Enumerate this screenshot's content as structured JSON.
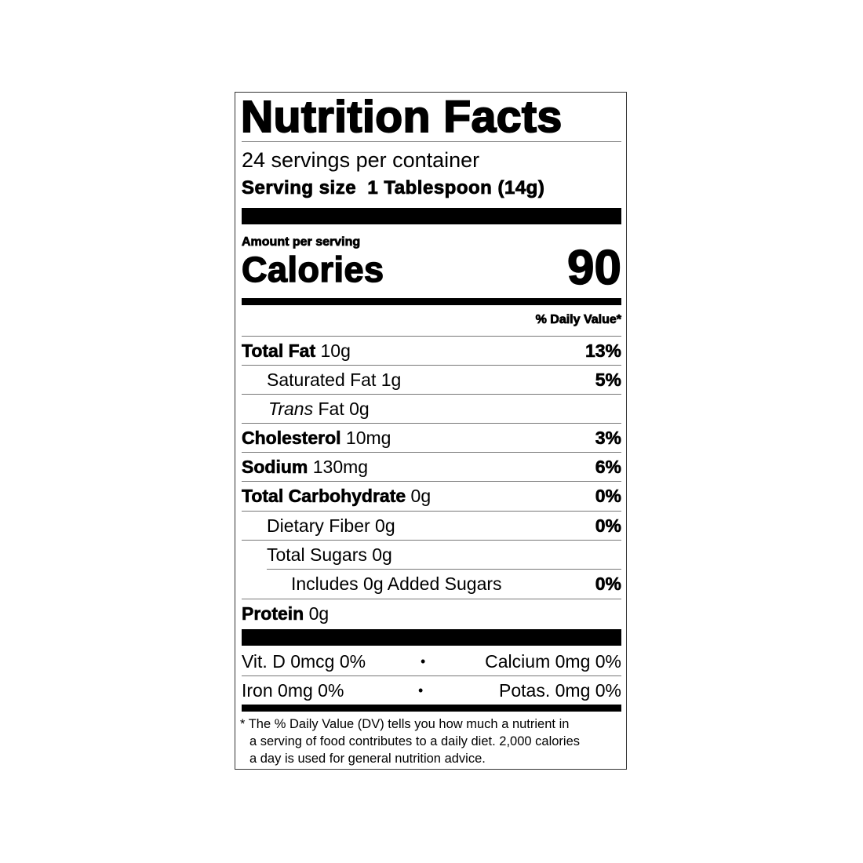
{
  "title": "Nutrition Facts",
  "servings_per_container": "24 servings per container",
  "serving_size_label": "Serving size",
  "serving_size_value": "1 Tablespoon (14g)",
  "amount_per_serving": "Amount per serving",
  "calories_label": "Calories",
  "calories_value": "90",
  "daily_value_header": "% Daily Value*",
  "nutrients": [
    {
      "name": "Total Fat",
      "amount": "10g",
      "dv": "13%"
    },
    {
      "name": "Saturated Fat",
      "amount": "1g",
      "dv": "5%"
    },
    {
      "name_italic": "Trans",
      "name": "Fat",
      "amount": "0g",
      "dv": ""
    },
    {
      "name": "Cholesterol",
      "amount": "10mg",
      "dv": "3%"
    },
    {
      "name": "Sodium",
      "amount": "130mg",
      "dv": "6%"
    },
    {
      "name": "Total Carbohydrate",
      "amount": "0g",
      "dv": "0%"
    },
    {
      "name": "Dietary Fiber",
      "amount": "0g",
      "dv": "0%"
    },
    {
      "name": "Total Sugars",
      "amount": "0g",
      "dv": ""
    },
    {
      "name": "Includes 0g Added Sugars",
      "amount": "",
      "dv": "0%"
    },
    {
      "name": "Protein",
      "amount": "0g",
      "dv": ""
    }
  ],
  "vitamins": [
    {
      "left": "Vit. D 0mcg 0%",
      "separator": "•",
      "right": "Calcium 0mg 0%"
    },
    {
      "left": "Iron 0mg 0%",
      "separator": "•",
      "right": "Potas. 0mg 0%"
    }
  ],
  "footnote": {
    "line1": "* The % Daily Value (DV) tells you how much a nutrient in",
    "line2": "a serving of food contributes to a daily diet. 2,000 calories",
    "line3": "a day is used for general nutrition advice."
  }
}
